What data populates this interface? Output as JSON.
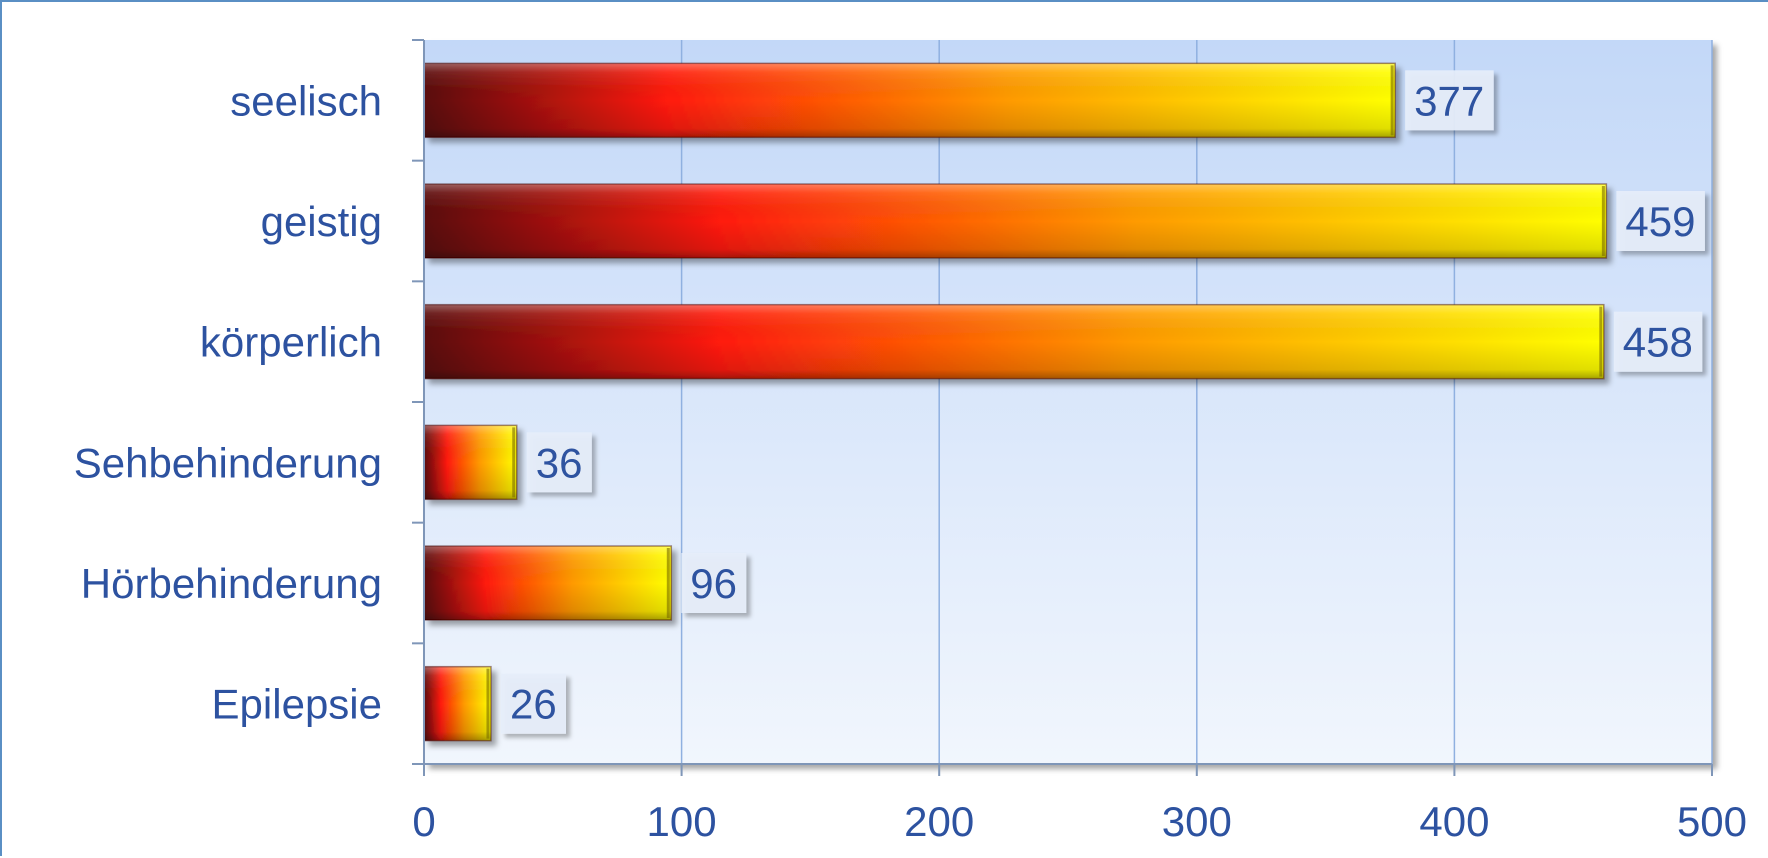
{
  "chart_data": {
    "type": "bar",
    "orientation": "horizontal",
    "categories": [
      "seelisch",
      "geistig",
      "körperlich",
      "Sehbehinderung",
      "Hörbehinderung",
      "Epilepsie"
    ],
    "values": [
      377,
      459,
      458,
      36,
      96,
      26
    ],
    "x_ticks": [
      "0",
      "100",
      "200",
      "300",
      "400",
      "500"
    ],
    "xlim": [
      0,
      500
    ],
    "grid": "vertical",
    "data_labels": true,
    "title": "",
    "xlabel": "",
    "ylabel": ""
  },
  "colors": {
    "text": "#2d52a0",
    "plot_bg_top": "#c3d8f8",
    "plot_bg_bottom": "#f1f6fd",
    "grid": "#8fb0e0",
    "bar_gradient": [
      "#5a0a0a",
      "#ff1a0a",
      "#ff9a00",
      "#ffff00"
    ]
  }
}
